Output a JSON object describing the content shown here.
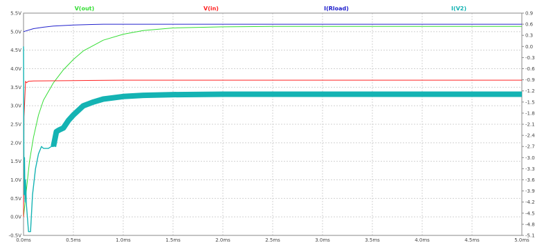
{
  "chart_data": {
    "type": "line",
    "title": "",
    "xlabel": "",
    "ylabel": "",
    "xlim": [
      0.0,
      5.0
    ],
    "ylim_left": [
      -0.5,
      5.5
    ],
    "ylim_right": [
      -5.1,
      0.9
    ],
    "grid": true,
    "legend_position": "top",
    "x_tick_labels": [
      "0.0ms",
      "0.5ms",
      "1.0ms",
      "1.5ms",
      "2.0ms",
      "2.5ms",
      "3.0ms",
      "3.5ms",
      "4.0ms",
      "4.5ms",
      "5.0ms"
    ],
    "y_left_tick_labels": [
      "5.5V",
      "5.0V",
      "4.5V",
      "4.0V",
      "3.5V",
      "3.0V",
      "2.5V",
      "2.0V",
      "1.5V",
      "1.0V",
      "0.5V",
      "0.0V",
      "-0.5V"
    ],
    "y_right_tick_labels": [
      "0.9",
      "0.6",
      "0.3",
      "0.0",
      "-0.3",
      "-0.6",
      "-0.9",
      "-1.2",
      "-1.5",
      "-1.8",
      "-2.1",
      "-2.4",
      "-2.7",
      "-3.0",
      "-3.3",
      "-3.6",
      "-3.9",
      "-4.2",
      "-4.5",
      "-4.8",
      "-5.1"
    ],
    "series": [
      {
        "name": "V(out)",
        "color": "#33dd33",
        "axis": "left",
        "x": [
          0.0,
          0.03,
          0.06,
          0.1,
          0.15,
          0.2,
          0.3,
          0.4,
          0.5,
          0.6,
          0.8,
          1.0,
          1.2,
          1.5,
          2.0,
          2.5,
          3.0,
          4.0,
          5.0
        ],
        "y": [
          0.0,
          0.75,
          1.5,
          2.15,
          2.75,
          3.15,
          3.62,
          3.97,
          4.25,
          4.48,
          4.77,
          4.93,
          5.03,
          5.1,
          5.13,
          5.14,
          5.14,
          5.14,
          5.14
        ]
      },
      {
        "name": "V(in)",
        "color": "#ff2020",
        "axis": "left",
        "x": [
          0.0,
          0.005,
          0.01,
          0.02,
          0.03,
          0.05,
          0.1,
          0.5,
          1.0,
          5.0
        ],
        "y": [
          0.0,
          2.7,
          3.0,
          3.66,
          3.62,
          3.66,
          3.67,
          3.68,
          3.69,
          3.69
        ]
      },
      {
        "name": "I(Rload)",
        "color": "#2020cc",
        "axis": "left",
        "x": [
          0.0,
          0.1,
          0.2,
          0.3,
          0.5,
          0.8,
          1.0,
          1.5,
          2.0,
          3.0,
          5.0
        ],
        "y": [
          5.0,
          5.08,
          5.12,
          5.15,
          5.18,
          5.2,
          5.2,
          5.2,
          5.2,
          5.2,
          5.2
        ]
      },
      {
        "name": "I(V2)",
        "color": "#14b3b3",
        "axis": "right",
        "x": [
          0.0,
          0.005,
          0.01,
          0.015,
          0.02,
          0.03,
          0.05,
          0.07,
          0.09,
          0.12,
          0.15,
          0.18,
          0.2,
          0.25,
          0.28,
          0.3,
          0.33,
          0.36,
          0.4,
          0.45,
          0.5,
          0.6,
          0.7,
          0.8,
          1.0,
          1.2,
          1.5,
          2.0,
          2.5,
          3.0,
          4.0,
          5.0
        ],
        "y": [
          0.0,
          -4.0,
          -3.0,
          -4.2,
          -3.6,
          -4.3,
          -5.0,
          -5.0,
          -4.0,
          -3.3,
          -2.9,
          -2.7,
          -2.75,
          -2.75,
          -2.7,
          -2.7,
          -2.3,
          -2.25,
          -2.2,
          -2.0,
          -1.85,
          -1.6,
          -1.5,
          -1.42,
          -1.35,
          -1.32,
          -1.3,
          -1.29,
          -1.29,
          -1.29,
          -1.29,
          -1.29
        ]
      }
    ]
  }
}
